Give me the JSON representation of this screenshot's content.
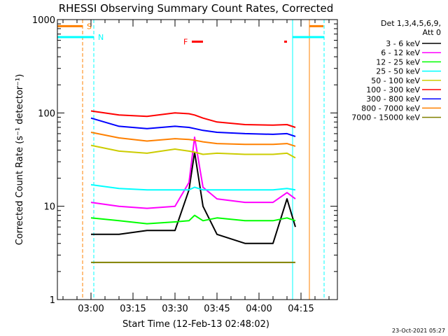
{
  "chart_data": {
    "type": "line",
    "title": "RHESSI Observing Summary Count Rates, Corrected",
    "xlabel": "Start Time (12-Feb-13 02:48:02)",
    "ylabel": "Corrected Count Rate (s⁻¹ detector⁻¹)",
    "footer": "23-Oct-2021 05:27",
    "y_scale": "log",
    "ylim": [
      1,
      1000
    ],
    "xlim": [
      "02:48",
      "04:28"
    ],
    "x_ticks": [
      "03:00",
      "03:15",
      "03:30",
      "03:45",
      "04:00",
      "04:15"
    ],
    "y_ticks": [
      "1",
      "10",
      "100",
      "1000"
    ],
    "legend": {
      "position": "right",
      "header": [
        "Det 1,3,4,5,6,9,",
        "Att 0"
      ],
      "entries": [
        {
          "label": "3 - 6 keV",
          "color": "#000000"
        },
        {
          "label": "6 - 12 keV",
          "color": "#ff00ff"
        },
        {
          "label": "12 - 25 keV",
          "color": "#00ff00"
        },
        {
          "label": "25 - 50 keV",
          "color": "#00ffff"
        },
        {
          "label": "50 - 100 keV",
          "color": "#cccc00"
        },
        {
          "label": "100 - 300 keV",
          "color": "#ff0000"
        },
        {
          "label": "300 - 800 keV",
          "color": "#0000ff"
        },
        {
          "label": "800 - 7000 keV",
          "color": "#ff8000"
        },
        {
          "label": "7000 - 15000 keV",
          "color": "#808000"
        }
      ]
    },
    "markers": {
      "S": {
        "label": "S",
        "color": "#ff8000",
        "times": [
          "02:57",
          "04:18"
        ],
        "level": 850
      },
      "N": {
        "label": "N",
        "color": "#00ffff",
        "times": [
          "03:01",
          "04:12"
        ],
        "level": 650
      },
      "F": {
        "label": "F",
        "color": "#ff0000",
        "intervals": [
          [
            "03:36",
            "03:40"
          ],
          [
            "04:09",
            "04:10"
          ]
        ],
        "level": 580
      }
    },
    "x": [
      "03:00",
      "03:10",
      "03:20",
      "03:30",
      "03:35",
      "03:37",
      "03:40",
      "03:45",
      "03:55",
      "04:05",
      "04:10",
      "04:13"
    ],
    "series": [
      {
        "name": "3 - 6 keV",
        "values": [
          5,
          5,
          5.5,
          5.5,
          15,
          38,
          10,
          5,
          4,
          4,
          12,
          6
        ]
      },
      {
        "name": "6 - 12 keV",
        "values": [
          11,
          10,
          9.5,
          10,
          18,
          55,
          16,
          12,
          11,
          11,
          14,
          12
        ]
      },
      {
        "name": "12 - 25 keV",
        "values": [
          7.5,
          7,
          6.5,
          6.8,
          7,
          8,
          7,
          7.5,
          7,
          7,
          7.5,
          7
        ]
      },
      {
        "name": "25 - 50 keV",
        "values": [
          17,
          15.5,
          15,
          15,
          15,
          16,
          15,
          15,
          15,
          15,
          15.5,
          15
        ]
      },
      {
        "name": "50 - 100 keV",
        "values": [
          45,
          39,
          37,
          41,
          39,
          38,
          36,
          37,
          36,
          36,
          37,
          33
        ]
      },
      {
        "name": "100 - 300 keV",
        "values": [
          105,
          95,
          92,
          100,
          98,
          95,
          88,
          80,
          75,
          74,
          75,
          70
        ]
      },
      {
        "name": "300 - 800 keV",
        "values": [
          88,
          72,
          68,
          72,
          70,
          68,
          65,
          62,
          60,
          59,
          60,
          56
        ]
      },
      {
        "name": "800 - 7000 keV",
        "values": [
          62,
          54,
          50,
          53,
          52,
          51,
          49,
          47,
          46,
          46,
          47,
          44
        ]
      },
      {
        "name": "7000 - 15000 keV",
        "values": [
          2.5,
          2.5,
          2.5,
          2.5,
          2.5,
          2.5,
          2.5,
          2.5,
          2.5,
          2.5,
          2.5,
          2.5
        ]
      }
    ]
  }
}
